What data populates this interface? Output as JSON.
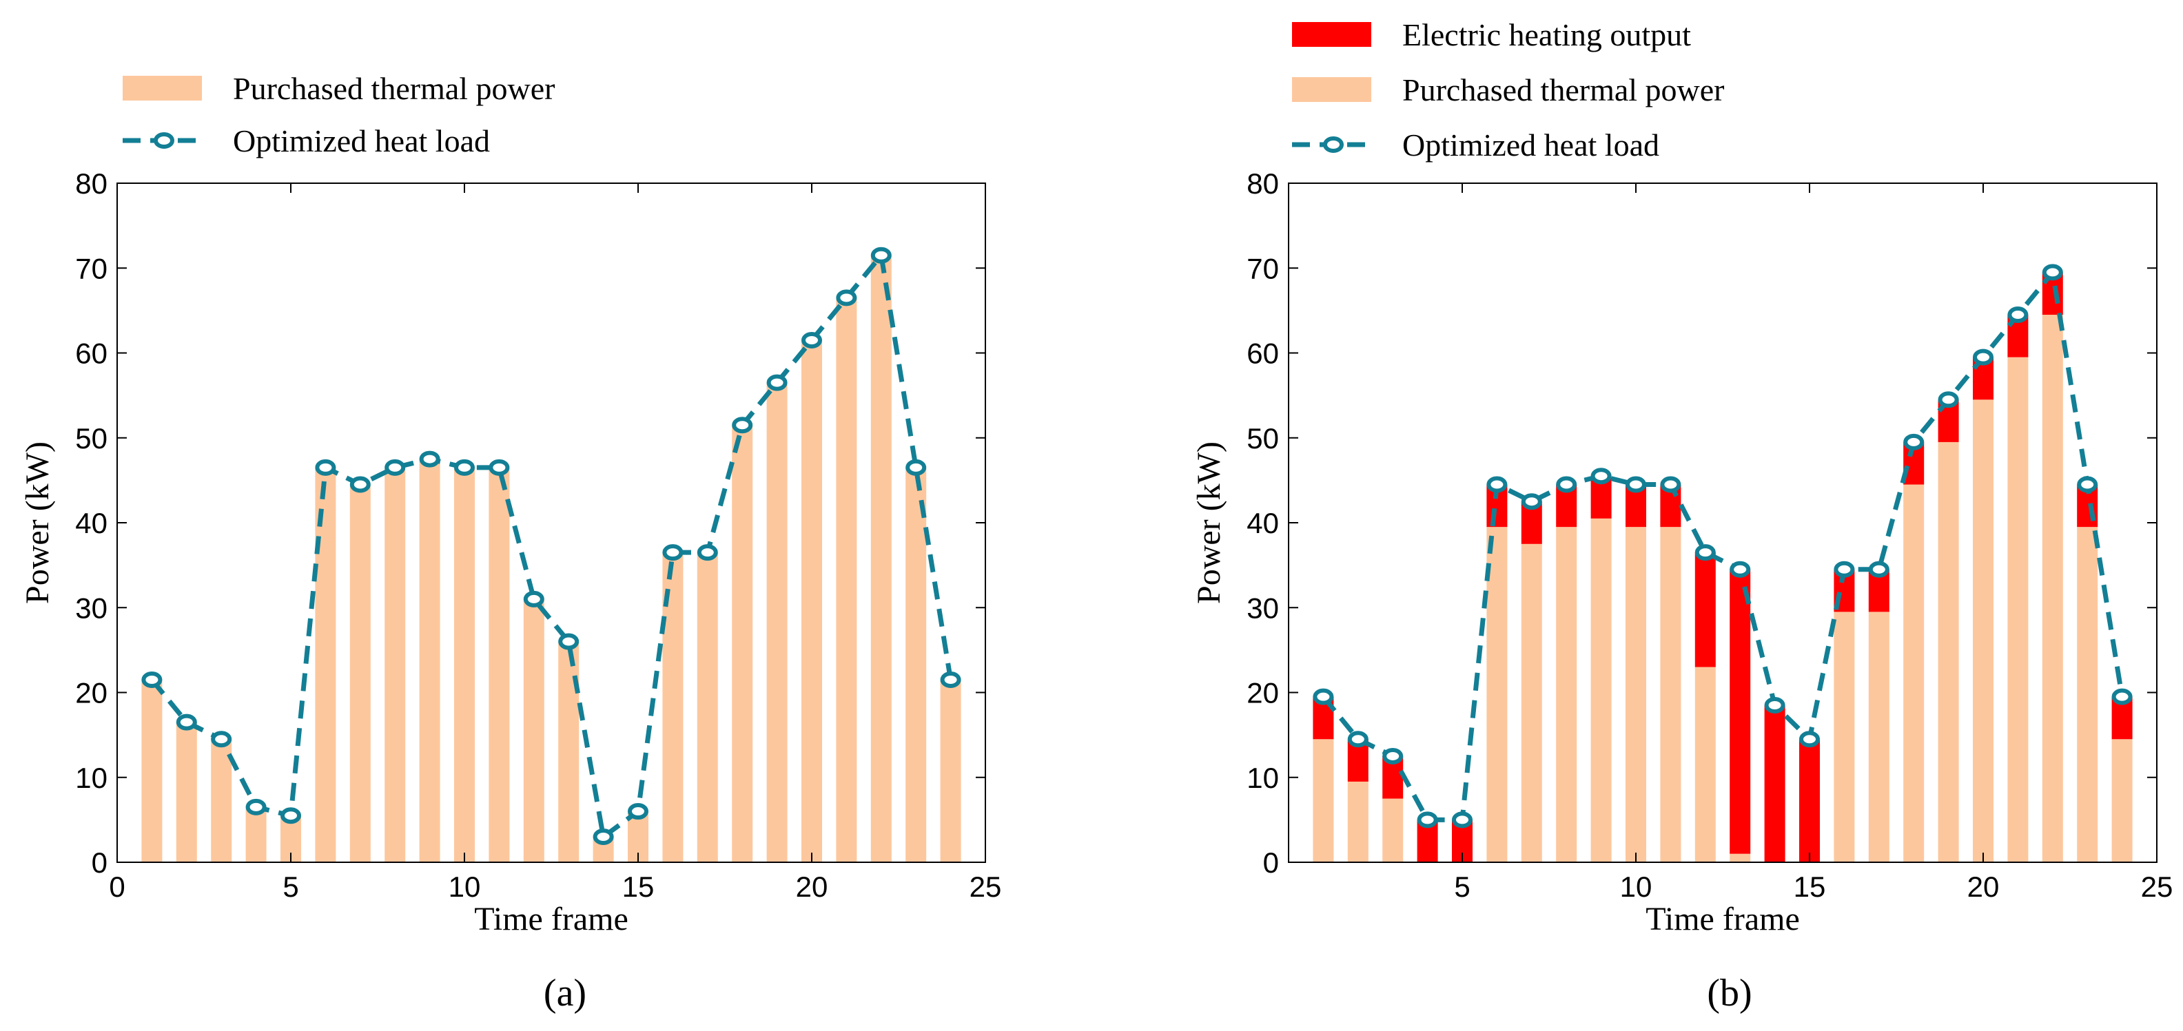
{
  "colors": {
    "purchased": "#FDC79D",
    "electric": "#FF0000",
    "load_line": "#137F95",
    "axis": "#000000"
  },
  "chart_data": [
    {
      "type": "bar",
      "panel_label": "(a)",
      "xlabel": "Time frame",
      "ylabel": "Power (kW)",
      "xlim": [
        0,
        25
      ],
      "ylim": [
        0,
        80
      ],
      "xticks": [
        0,
        5,
        10,
        15,
        20,
        25
      ],
      "yticks": [
        0,
        10,
        20,
        30,
        40,
        50,
        60,
        70,
        80
      ],
      "categories": [
        1,
        2,
        3,
        4,
        5,
        6,
        7,
        8,
        9,
        10,
        11,
        12,
        13,
        14,
        15,
        16,
        17,
        18,
        19,
        20,
        21,
        22,
        23,
        24
      ],
      "legend": [
        "Purchased thermal power",
        "Optimized heat load"
      ],
      "series": [
        {
          "name": "Purchased thermal power",
          "kind": "bar",
          "values": [
            21.5,
            16.5,
            14.5,
            6.5,
            5.5,
            46.5,
            44.5,
            46.5,
            47.5,
            46.5,
            46.5,
            31,
            26,
            3,
            6,
            36.5,
            36.5,
            51.5,
            56.5,
            61.5,
            66.5,
            71.5,
            46.5,
            21.5
          ]
        },
        {
          "name": "Optimized heat load",
          "kind": "line",
          "values": [
            21.5,
            16.5,
            14.5,
            6.5,
            5.5,
            46.5,
            44.5,
            46.5,
            47.5,
            46.5,
            46.5,
            31,
            26,
            3,
            6,
            36.5,
            36.5,
            51.5,
            56.5,
            61.5,
            66.5,
            71.5,
            46.5,
            21.5
          ]
        }
      ]
    },
    {
      "type": "bar",
      "stacked": true,
      "panel_label": "(b)",
      "xlabel": "Time frame",
      "ylabel": "Power (kW)",
      "xlim": [
        0,
        25
      ],
      "ylim": [
        0,
        80
      ],
      "xticks": [
        5,
        10,
        15,
        20,
        25
      ],
      "yticks": [
        0,
        10,
        20,
        30,
        40,
        50,
        60,
        70,
        80
      ],
      "categories": [
        1,
        2,
        3,
        4,
        5,
        6,
        7,
        8,
        9,
        10,
        11,
        12,
        13,
        14,
        15,
        16,
        17,
        18,
        19,
        20,
        21,
        22,
        23,
        24
      ],
      "legend": [
        "Electric heating output",
        "Purchased thermal power",
        "Optimized heat load"
      ],
      "series": [
        {
          "name": "Purchased thermal power",
          "kind": "bar",
          "values": [
            14.5,
            9.5,
            7.5,
            0,
            0,
            39.5,
            37.5,
            39.5,
            40.5,
            39.5,
            39.5,
            23,
            1,
            0,
            0,
            29.5,
            29.5,
            44.5,
            49.5,
            54.5,
            59.5,
            64.5,
            39.5,
            14.5
          ]
        },
        {
          "name": "Electric heating output",
          "kind": "bar",
          "values": [
            5,
            5,
            5,
            5,
            5,
            5,
            5,
            5,
            5,
            5,
            5,
            13.5,
            33.5,
            18.5,
            14.5,
            5,
            5,
            5,
            5,
            5,
            5,
            5,
            5,
            5
          ]
        },
        {
          "name": "Optimized heat load",
          "kind": "line",
          "values": [
            19.5,
            14.5,
            12.5,
            5,
            5,
            44.5,
            42.5,
            44.5,
            45.5,
            44.5,
            44.5,
            36.5,
            34.5,
            18.5,
            14.5,
            34.5,
            34.5,
            49.5,
            54.5,
            59.5,
            64.5,
            69.5,
            44.5,
            19.5
          ]
        }
      ]
    }
  ]
}
